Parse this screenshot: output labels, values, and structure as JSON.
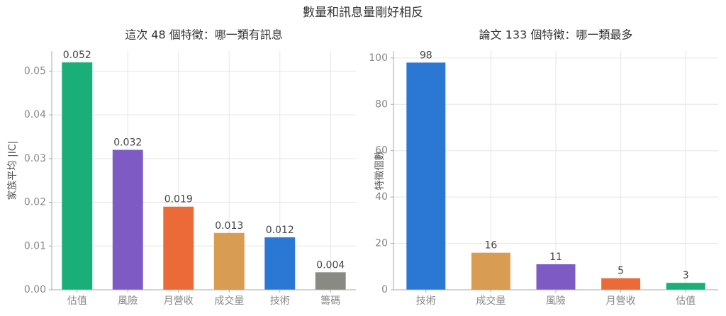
{
  "title": "數量和訊息量剛好相反",
  "chart_data": [
    {
      "type": "bar",
      "title": "這次 48 個特徵：哪一類有訊息",
      "ylabel": "家族平均 |IC|",
      "categories": [
        "估值",
        "風險",
        "月營收",
        "成交量",
        "技術",
        "籌碼"
      ],
      "values": [
        0.052,
        0.032,
        0.019,
        0.013,
        0.012,
        0.004
      ],
      "colors": [
        "#1aaf78",
        "#7e5bc4",
        "#ec6a37",
        "#d89c52",
        "#2a78d4",
        "#8a8a85"
      ],
      "ylim": [
        0,
        0.0546
      ],
      "yticks": [
        {
          "value": 0,
          "label": "0.00"
        },
        0.01,
        0.02,
        0.03,
        0.04,
        0.05
      ],
      "grid": true
    },
    {
      "type": "bar",
      "title": "論文 133 個特徵：哪一類最多",
      "ylabel": "特徵個數",
      "categories": [
        "技術",
        "成交量",
        "風險",
        "月營收",
        "估值"
      ],
      "values": [
        98,
        16,
        11,
        5,
        3
      ],
      "colors": [
        "#2a78d4",
        "#d89c52",
        "#7e5bc4",
        "#ec6a37",
        "#1aaf78"
      ],
      "ylim": [
        0,
        103
      ],
      "yticks": [
        0,
        20,
        40,
        60,
        80,
        100
      ],
      "grid": true
    }
  ]
}
